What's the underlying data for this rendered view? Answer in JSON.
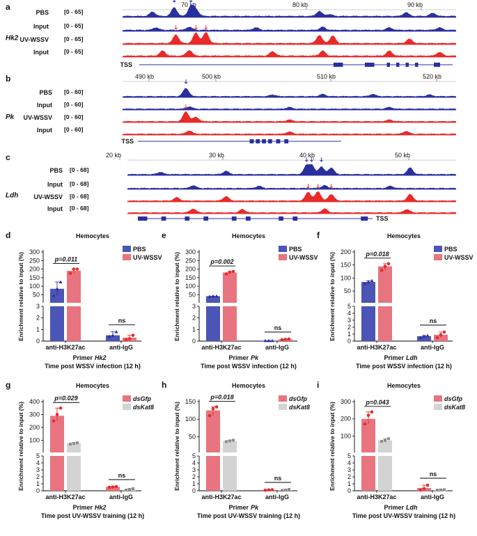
{
  "figure": {
    "panels": [
      "a",
      "b",
      "c",
      "d",
      "e",
      "f",
      "g",
      "h",
      "i"
    ],
    "colors": {
      "pbs": "#4a55b5",
      "uv": "#e8747f",
      "track_blue": "#2a2fa0",
      "track_red": "#e82a2a",
      "dskat8": "#d3d3d3",
      "dskat8_dot": "#8c8c8c",
      "gene": "#2a2fa0"
    }
  },
  "chart_data": [
    {
      "panel": "a",
      "type": "area",
      "gene": "Hk2",
      "axis_ticks": [
        "70 kb",
        "80 kb",
        "90 kb"
      ],
      "tss_label": "TSS",
      "tracks": [
        {
          "label": "PBS",
          "range": "[0 - 65]",
          "color": "blue",
          "peaks": [
            [
              0.09,
              0.35
            ],
            [
              0.155,
              0.7
            ],
            [
              0.205,
              0.8
            ],
            [
              0.22,
              0.5
            ],
            [
              0.59,
              0.4
            ],
            [
              0.62,
              0.15
            ],
            [
              0.85,
              0.3
            ],
            [
              0.93,
              0.25
            ]
          ]
        },
        {
          "label": "Input",
          "range": "[0 - 65]",
          "color": "blue",
          "peaks": [
            [
              0.1,
              0.2
            ],
            [
              0.2,
              0.25
            ],
            [
              0.4,
              0.2
            ],
            [
              0.6,
              0.25
            ],
            [
              0.8,
              0.2
            ],
            [
              0.95,
              0.2
            ]
          ]
        },
        {
          "label": "UV-WSSV",
          "range": "[0 - 65]",
          "color": "red",
          "peaks": [
            [
              0.16,
              0.7
            ],
            [
              0.22,
              0.85
            ],
            [
              0.25,
              0.9
            ],
            [
              0.59,
              0.65
            ],
            [
              0.63,
              0.6
            ],
            [
              0.86,
              0.35
            ]
          ]
        },
        {
          "label": "Input",
          "range": "[0 - 65]",
          "color": "red",
          "peaks": [
            [
              0.12,
              0.4
            ],
            [
              0.2,
              0.45
            ],
            [
              0.45,
              0.35
            ],
            [
              0.6,
              0.4
            ],
            [
              0.8,
              0.4
            ],
            [
              0.95,
              0.3
            ]
          ]
        }
      ]
    },
    {
      "panel": "b",
      "type": "area",
      "gene": "Pk",
      "axis_ticks": [
        "490 kb",
        "500 kb",
        "510 kb",
        "520 kb"
      ],
      "tss_label": "TSS",
      "tracks": [
        {
          "label": "PBS",
          "range": "[0 - 60]",
          "color": "blue",
          "peaks": [
            [
              0.19,
              0.75
            ],
            [
              0.45,
              0.15
            ],
            [
              0.6,
              0.2
            ],
            [
              0.75,
              0.2
            ],
            [
              0.92,
              0.15
            ]
          ]
        },
        {
          "label": "Input",
          "range": "[0 - 60]",
          "color": "blue",
          "peaks": [
            [
              0.2,
              0.2
            ],
            [
              0.5,
              0.15
            ],
            [
              0.8,
              0.15
            ]
          ]
        },
        {
          "label": "UV-WSSV",
          "range": "[0 - 60]",
          "color": "red",
          "peaks": [
            [
              0.19,
              0.9
            ],
            [
              0.22,
              0.4
            ],
            [
              0.5,
              0.15
            ],
            [
              0.8,
              0.15
            ]
          ]
        },
        {
          "label": "Input",
          "range": "[0 - 60]",
          "color": "red",
          "peaks": [
            [
              0.2,
              0.3
            ],
            [
              0.5,
              0.2
            ],
            [
              0.85,
              0.25
            ]
          ]
        }
      ]
    },
    {
      "panel": "c",
      "type": "area",
      "gene": "Ldh",
      "axis_ticks": [
        "20 kb",
        "30 kb",
        "40 kb",
        "50 kb"
      ],
      "tss_label": "TSS",
      "tracks": [
        {
          "label": "PBS",
          "range": "[0 - 68]",
          "color": "blue",
          "peaks": [
            [
              0.1,
              0.2
            ],
            [
              0.3,
              0.3
            ],
            [
              0.545,
              0.75
            ],
            [
              0.56,
              0.85
            ],
            [
              0.59,
              0.7
            ],
            [
              0.62,
              0.6
            ],
            [
              0.86,
              0.6
            ]
          ]
        },
        {
          "label": "Input",
          "range": "[0 - 68]",
          "color": "blue",
          "peaks": [
            [
              0.2,
              0.25
            ],
            [
              0.4,
              0.2
            ],
            [
              0.6,
              0.25
            ],
            [
              0.8,
              0.2
            ]
          ]
        },
        {
          "label": "UV-WSSV",
          "range": "[0 - 68]",
          "color": "red",
          "peaks": [
            [
              0.15,
              0.3
            ],
            [
              0.3,
              0.4
            ],
            [
              0.55,
              0.8
            ],
            [
              0.58,
              0.85
            ],
            [
              0.62,
              0.6
            ],
            [
              0.86,
              0.6
            ]
          ]
        },
        {
          "label": "Input",
          "range": "[0 - 68]",
          "color": "red",
          "peaks": [
            [
              0.2,
              0.35
            ],
            [
              0.35,
              0.3
            ],
            [
              0.6,
              0.35
            ],
            [
              0.85,
              0.3
            ]
          ]
        }
      ]
    },
    {
      "panel": "d",
      "type": "bar",
      "title": "Hemocytes",
      "gene": "Hk2",
      "categories": [
        "anti-H3K27ac",
        "anti-IgG"
      ],
      "series": [
        {
          "name": "PBS",
          "color": "pbs",
          "values": [
            85,
            0.5
          ],
          "points": [
            [
              45,
              85,
              125
            ],
            [
              0.4,
              0.5,
              0.8
            ]
          ]
        },
        {
          "name": "UV-WSSV",
          "color": "uv",
          "values": [
            190,
            0.3
          ],
          "points": [
            [
              175,
              200,
              200
            ],
            [
              0.1,
              0.2,
              0.5
            ]
          ]
        }
      ],
      "ylabel": "Enrichment relative to input (%)",
      "yticks_top": [
        "50",
        "100",
        "150",
        "200",
        "250",
        "300"
      ],
      "yticks_bottom": [
        "0",
        "1",
        "2",
        "3"
      ],
      "pvalues": [
        {
          "label": "p=0.011"
        },
        {
          "label": "ns"
        }
      ],
      "xlabel": "Primer",
      "xlabel_gene": "Hk2",
      "footer": "Time post WSSV infection (12 h)"
    },
    {
      "panel": "e",
      "type": "bar",
      "title": "Hemocytes",
      "gene": "Pk",
      "categories": [
        "anti-H3K27ac",
        "anti-IgG"
      ],
      "series": [
        {
          "name": "PBS",
          "color": "pbs",
          "values": [
            42,
            0.04
          ],
          "points": [
            [
              40,
              42,
              42
            ],
            [
              0.04,
              0.04,
              0.04
            ]
          ]
        },
        {
          "name": "UV-WSSV",
          "color": "uv",
          "values": [
            180,
            0.15
          ],
          "points": [
            [
              172,
              182,
              186
            ],
            [
              0.12,
              0.15,
              0.18
            ]
          ]
        }
      ],
      "ylabel": "Enrichment relative to input (%)",
      "yticks_top": [
        "50",
        "100",
        "150",
        "200",
        "250",
        "300"
      ],
      "yticks_bottom": [
        "0",
        "1",
        "2",
        "3"
      ],
      "pvalues": [
        {
          "label": "p=0.002"
        },
        {
          "label": "ns"
        }
      ],
      "xlabel": "Primer",
      "xlabel_gene": "Pk",
      "footer": "Time post WSSV infection (12 h)"
    },
    {
      "panel": "f",
      "type": "bar",
      "title": "Hemocytes",
      "gene": "Ldh",
      "categories": [
        "anti-H3K27ac",
        "anti-IgG"
      ],
      "series": [
        {
          "name": "PBS",
          "color": "pbs",
          "values": [
            85,
            0.7
          ],
          "points": [
            [
              78,
              85,
              90
            ],
            [
              0.5,
              0.7,
              0.8
            ]
          ]
        },
        {
          "name": "UV-WSSV",
          "color": "uv",
          "values": [
            145,
            0.9
          ],
          "points": [
            [
              130,
              145,
              155
            ],
            [
              0.5,
              0.9,
              1.3
            ]
          ]
        }
      ],
      "ylabel": "Enrichment relative to input (%)",
      "yticks_top": [
        "50",
        "100",
        "150",
        "200"
      ],
      "yticks_bottom": [
        "0",
        "1",
        "2",
        "3",
        "4",
        "5"
      ],
      "pvalues": [
        {
          "label": "p=0.018"
        },
        {
          "label": "ns"
        }
      ],
      "xlabel": "Primer",
      "xlabel_gene": "Ldh",
      "footer": "Time post WSSV infection (12 h)"
    },
    {
      "panel": "g",
      "type": "bar",
      "title": "Hemocytes",
      "gene": "Hk2",
      "categories": [
        "anti-H3K27ac",
        "anti-IgG"
      ],
      "series": [
        {
          "name": "dsGfp",
          "color": "uv",
          "values": [
            290,
            0.55
          ],
          "points": [
            [
              250,
              300,
              350
            ],
            [
              0.5,
              0.55,
              0.6
            ]
          ]
        },
        {
          "name": "dsKat8",
          "color": "dskat8",
          "values": [
            75,
            0.2
          ],
          "points": [
            [
              70,
              75,
              80
            ],
            [
              0.1,
              0.2,
              0.3
            ]
          ]
        }
      ],
      "ylabel": "Enrichment relative to input (%)",
      "yticks_top": [
        "100",
        "200",
        "300",
        "400"
      ],
      "yticks_bottom": [
        "0",
        "1",
        "2",
        "3",
        "4",
        "5"
      ],
      "pvalues": [
        {
          "label": "p=0.029"
        },
        {
          "label": "ns"
        }
      ],
      "xlabel": "Primer",
      "xlabel_gene": "Hk2",
      "footer": "Time post UV-WSSV training (12 h)"
    },
    {
      "panel": "h",
      "type": "bar",
      "title": "Hemocytes",
      "gene": "Pk",
      "categories": [
        "anti-H3K27ac",
        "anti-IgG"
      ],
      "series": [
        {
          "name": "dsGfp",
          "color": "uv",
          "values": [
            125,
            0.12
          ],
          "points": [
            [
              110,
              130,
              135
            ],
            [
              0.08,
              0.12,
              0.15
            ]
          ]
        },
        {
          "name": "dsKat8",
          "color": "dskat8",
          "values": [
            38,
            0.12
          ],
          "points": [
            [
              36,
              38,
              40
            ],
            [
              0.05,
              0.1,
              0.2
            ]
          ]
        }
      ],
      "ylabel": "Enrichment relative to input (%)",
      "yticks_top": [
        "50",
        "100",
        "150"
      ],
      "yticks_bottom": [
        "0",
        "1",
        "2",
        "3",
        "4",
        "5"
      ],
      "pvalues": [
        {
          "label": "p=0.018"
        },
        {
          "label": "ns"
        }
      ],
      "xlabel": "Primer",
      "xlabel_gene": "Pk",
      "footer": "Time post UV-WSSV training (12 h)"
    },
    {
      "panel": "i",
      "type": "bar",
      "title": "Hemocytes",
      "gene": "Ldh",
      "categories": [
        "anti-H3K27ac",
        "anti-IgG"
      ],
      "series": [
        {
          "name": "dsGfp",
          "color": "uv",
          "values": [
            200,
            0.4
          ],
          "points": [
            [
              170,
              220,
              240
            ],
            [
              0.1,
              0.3,
              0.8
            ]
          ]
        },
        {
          "name": "dsKat8",
          "color": "dskat8",
          "values": [
            75,
            0.12
          ],
          "points": [
            [
              70,
              75,
              85
            ],
            [
              0.1,
              0.12,
              0.15
            ]
          ]
        }
      ],
      "ylabel": "Enrichment relative to input (%)",
      "yticks_top": [
        "100",
        "200",
        "300"
      ],
      "yticks_bottom": [
        "0",
        "1",
        "2",
        "3",
        "4",
        "5"
      ],
      "pvalues": [
        {
          "label": "p=0.043"
        },
        {
          "label": "ns"
        }
      ],
      "xlabel": "Primer",
      "xlabel_gene": "Ldh",
      "footer": "Time post UV-WSSV training (12 h)"
    }
  ]
}
